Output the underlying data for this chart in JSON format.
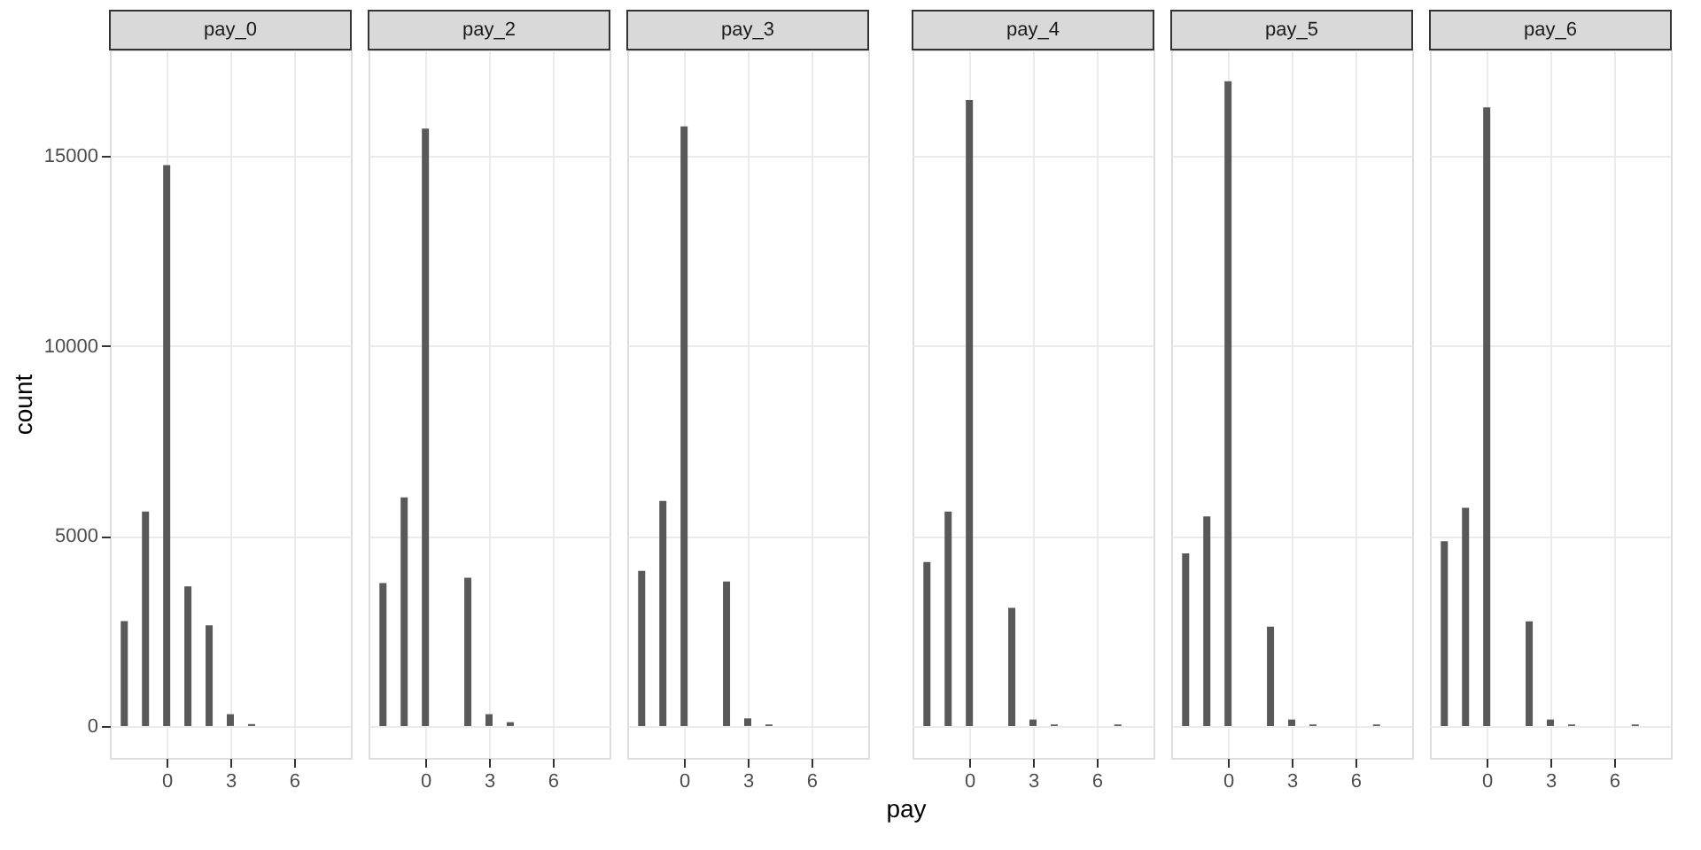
{
  "chart_data": [
    {
      "type": "bar",
      "title": "pay_0",
      "ylabel": "count",
      "x": [
        -2,
        -1,
        0,
        1,
        2,
        3,
        4
      ],
      "values": [
        2760,
        5640,
        14750,
        3670,
        2650,
        310,
        50
      ],
      "color": "#595959",
      "xlim": [
        -2.68,
        8.68
      ],
      "xticks": [
        0,
        3,
        6
      ],
      "ylim": [
        -840,
        17790
      ],
      "yticks": [
        0,
        5000,
        10000,
        15000
      ],
      "grid": true
    },
    {
      "type": "bar",
      "title": "pay_2",
      "x": [
        -2,
        -1,
        0,
        2,
        3,
        4
      ],
      "values": [
        3760,
        6010,
        15710,
        3900,
        310,
        100
      ],
      "color": "#595959",
      "xlim": [
        -2.68,
        8.68
      ],
      "xticks": [
        0,
        3,
        6
      ],
      "ylim": [
        -840,
        17790
      ],
      "yticks": [
        0,
        5000,
        10000,
        15000
      ],
      "grid": true,
      "tick_labels": "x"
    },
    {
      "type": "bar",
      "title": "pay_3",
      "x": [
        -2,
        -1,
        0,
        2,
        3,
        4
      ],
      "values": [
        4080,
        5920,
        15770,
        3800,
        200,
        40
      ],
      "color": "#595959",
      "xlim": [
        -2.68,
        8.68
      ],
      "xticks": [
        0,
        3,
        6
      ],
      "ylim": [
        -840,
        17790
      ],
      "yticks": [
        0,
        5000,
        10000,
        15000
      ],
      "grid": true,
      "tick_labels": "x"
    },
    {
      "type": "bar",
      "title": "pay_4",
      "xlabel": "pay",
      "x": [
        -2,
        -1,
        0,
        2,
        3,
        4,
        7
      ],
      "values": [
        4310,
        5640,
        16460,
        3110,
        170,
        40,
        40
      ],
      "color": "#595959",
      "xlim": [
        -2.68,
        8.68
      ],
      "xticks": [
        0,
        3,
        6
      ],
      "ylim": [
        -840,
        17790
      ],
      "yticks": [
        0,
        5000,
        10000,
        15000
      ],
      "grid": true,
      "tick_labels": "x"
    },
    {
      "type": "bar",
      "title": "pay_5",
      "x": [
        -2,
        -1,
        0,
        2,
        3,
        4,
        7
      ],
      "values": [
        4540,
        5510,
        16960,
        2610,
        170,
        40,
        40
      ],
      "color": "#595959",
      "xlim": [
        -2.68,
        8.68
      ],
      "xticks": [
        0,
        3,
        6
      ],
      "ylim": [
        -840,
        17790
      ],
      "yticks": [
        0,
        5000,
        10000,
        15000
      ],
      "grid": true,
      "tick_labels": "x"
    },
    {
      "type": "bar",
      "title": "pay_6",
      "x": [
        -2,
        -1,
        0,
        2,
        3,
        4,
        7
      ],
      "values": [
        4860,
        5740,
        16270,
        2750,
        170,
        40,
        40
      ],
      "color": "#595959",
      "xlim": [
        -2.68,
        8.68
      ],
      "xticks": [
        0,
        3,
        6
      ],
      "ylim": [
        -840,
        17790
      ],
      "yticks": [
        0,
        5000,
        10000,
        15000
      ],
      "grid": true,
      "tick_labels": "x"
    }
  ]
}
